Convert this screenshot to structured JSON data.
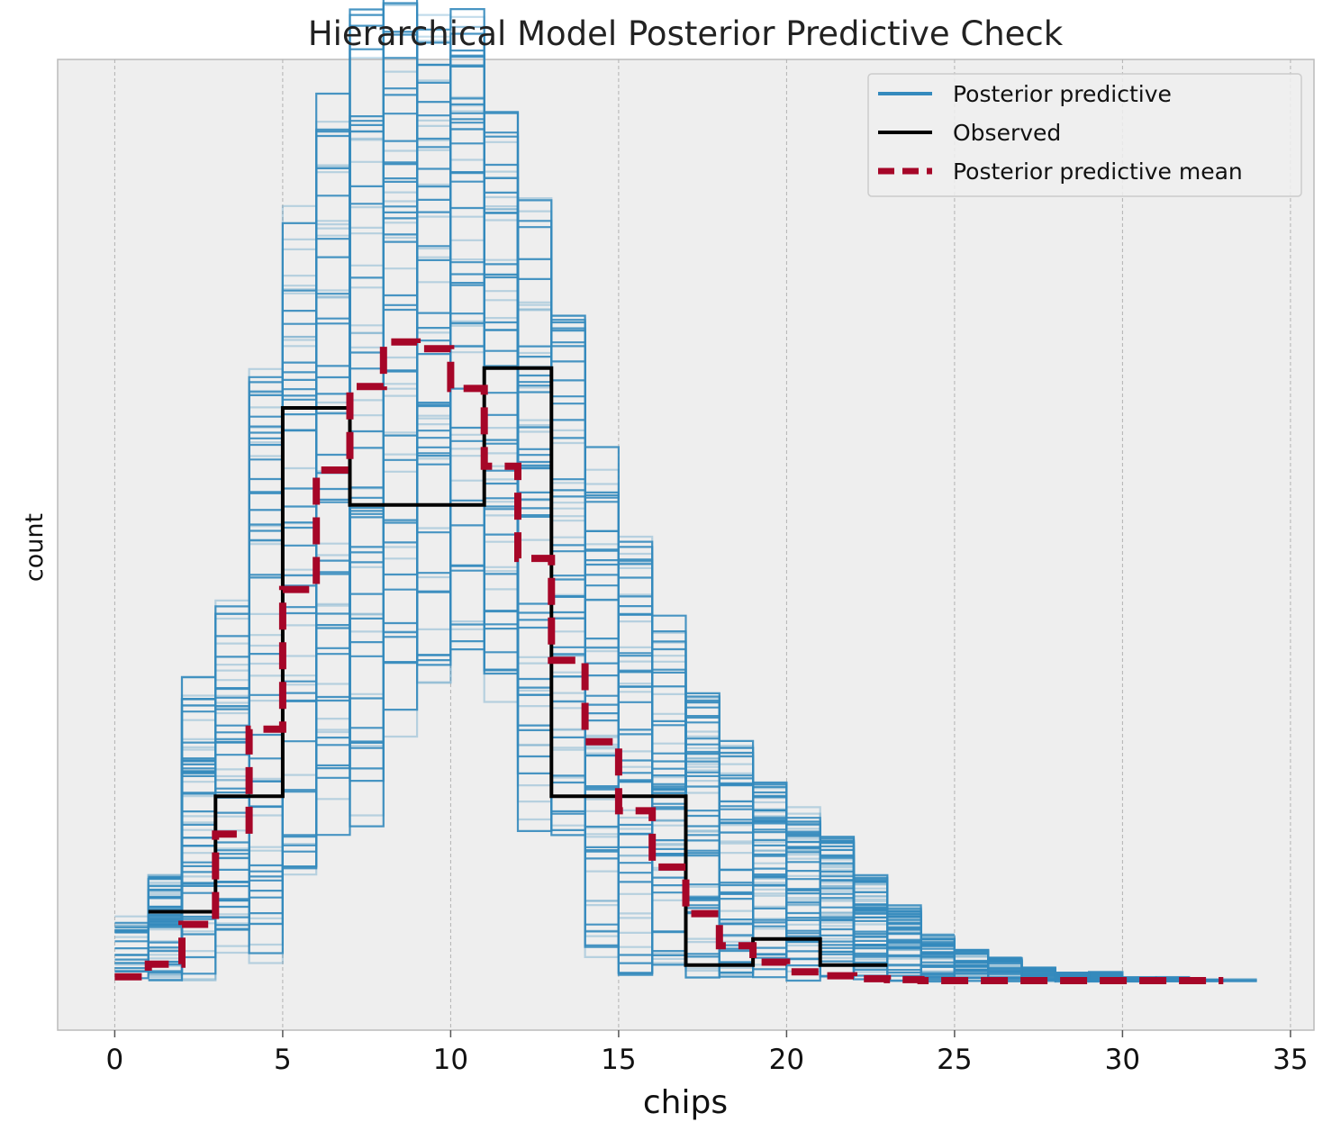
{
  "chart_data": {
    "type": "line",
    "title": "Hierarchical Model Posterior Predictive Check",
    "xlabel": "chips",
    "ylabel": "count",
    "xlim": [
      -1.7,
      35.7
    ],
    "ylim": [
      0,
      100
    ],
    "xticks": [
      0,
      5,
      10,
      15,
      20,
      25,
      30,
      35
    ],
    "grid": "vertical dashed",
    "legend_position": "top-right",
    "colors": {
      "posterior_predictive": "#348abd",
      "observed": "#000000",
      "posterior_predictive_mean": "#a60628",
      "background": "#eeeeee"
    },
    "legend": [
      {
        "label": "Posterior predictive",
        "series": "posterior_predictive"
      },
      {
        "label": "Observed",
        "series": "observed"
      },
      {
        "label": "Posterior predictive mean",
        "series": "posterior_predictive_mean"
      }
    ],
    "series": [
      {
        "name": "Observed",
        "key": "observed",
        "style": "step",
        "x": [
          1,
          3,
          3,
          5,
          5,
          7,
          7,
          11,
          11,
          13,
          13,
          17,
          17,
          19,
          19,
          21,
          21,
          23
        ],
        "y": [
          12.2,
          12.2,
          24.1,
          24.1,
          64.1,
          64.1,
          54.1,
          54.1,
          68.2,
          68.2,
          24.1,
          24.1,
          6.7,
          6.7,
          9.4,
          9.4,
          6.7,
          6.7
        ]
      },
      {
        "name": "Posterior predictive mean",
        "key": "posterior_predictive_mean",
        "style": "dashed-step",
        "x": [
          0,
          1,
          1,
          2,
          2,
          3,
          3,
          4,
          4,
          5,
          5,
          6,
          6,
          7,
          7,
          8,
          8,
          9,
          9,
          10,
          10,
          11,
          11,
          12,
          12,
          13,
          13,
          14,
          14,
          15,
          15,
          16,
          16,
          17,
          17,
          18,
          18,
          19,
          19,
          20,
          20,
          21,
          21,
          22,
          22,
          23,
          23,
          24,
          24,
          25,
          25,
          33
        ],
        "y": [
          5.5,
          5.5,
          6.8,
          6.8,
          10.9,
          10.9,
          20.2,
          20.2,
          31.0,
          31.0,
          45.4,
          45.4,
          57.7,
          57.7,
          66.3,
          66.3,
          70.9,
          70.9,
          70.2,
          70.2,
          66.1,
          66.1,
          58.1,
          58.1,
          48.6,
          48.6,
          38.1,
          38.1,
          29.7,
          29.7,
          22.6,
          22.6,
          16.8,
          16.8,
          12.0,
          12.0,
          8.7,
          8.7,
          7.0,
          7.0,
          6.0,
          6.0,
          5.6,
          5.6,
          5.3,
          5.3,
          5.2,
          5.2,
          5.1,
          5.1,
          5.1,
          5.1
        ]
      }
    ],
    "posterior_predictive": {
      "name": "Posterior predictive",
      "style": "many-steps",
      "bin_edges": [
        0,
        1,
        2,
        3,
        4,
        5,
        6,
        7,
        8,
        9,
        10,
        11,
        12,
        13,
        14,
        15,
        16,
        17,
        18,
        19,
        20,
        21,
        22,
        23,
        24,
        25,
        26,
        27,
        28,
        29,
        30,
        31,
        32,
        33,
        34
      ],
      "band_min": [
        5.0,
        5.0,
        5.0,
        7.0,
        5.0,
        12.0,
        18.0,
        20.0,
        30.0,
        34.0,
        38.0,
        30.0,
        20.0,
        18.0,
        7.0,
        5.0,
        5.0,
        5.0,
        5.0,
        5.0,
        5.0,
        5.0,
        5.0,
        5.0,
        5.0,
        5.0,
        5.0,
        5.0,
        5.0,
        5.0,
        5.0,
        5.0,
        5.0,
        5.0
      ],
      "band_max": [
        13.5,
        16.0,
        37.5,
        44.5,
        70.5,
        85.5,
        97.5,
        106.0,
        109.5,
        109.5,
        105.5,
        98.0,
        88.0,
        76.5,
        61.0,
        51.0,
        43.0,
        35.0,
        30.0,
        26.0,
        23.0,
        20.0,
        16.0,
        13.0,
        10.0,
        8.5,
        7.5,
        6.5,
        6.0,
        6.0,
        5.5,
        5.5,
        5.3,
        5.3
      ]
    }
  }
}
